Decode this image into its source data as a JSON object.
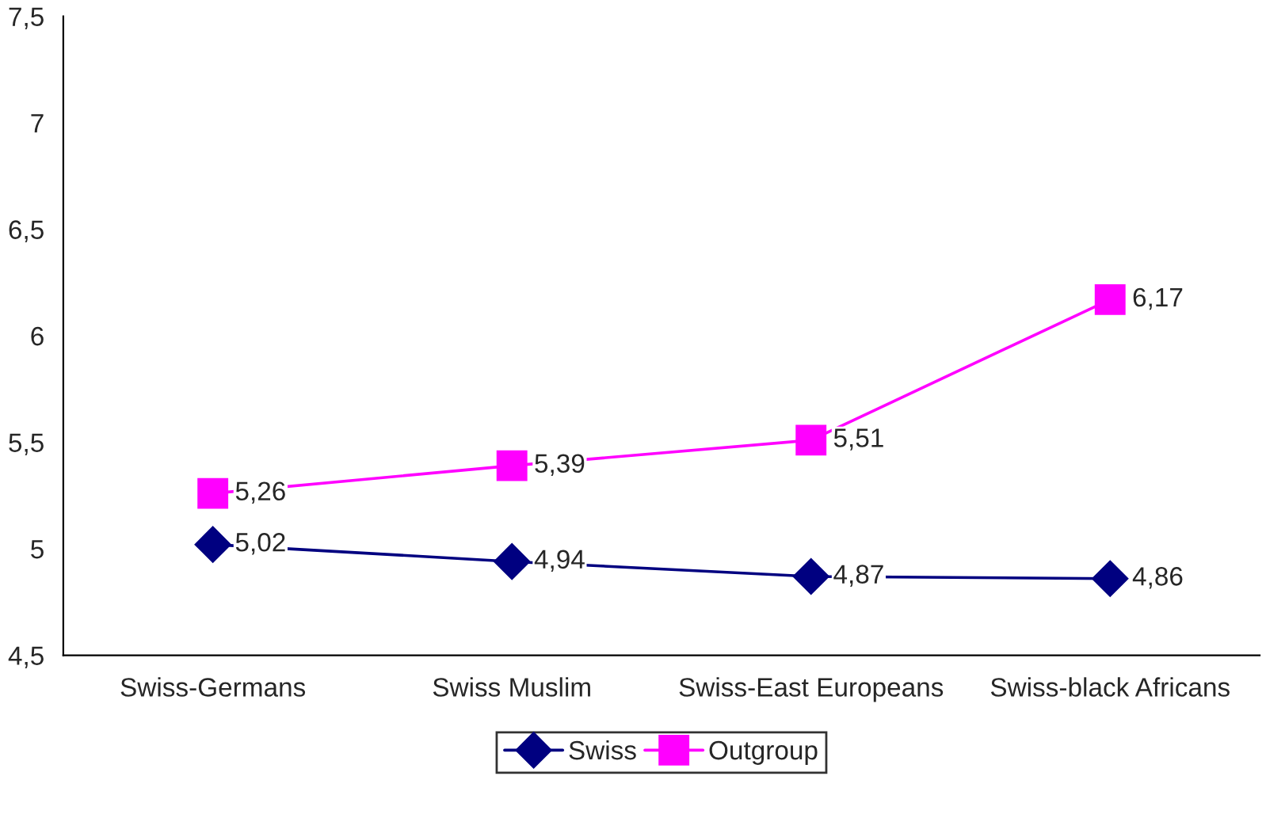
{
  "chart_data": {
    "type": "line",
    "categories": [
      "Swiss-Germans",
      "Swiss Muslim",
      "Swiss-East Europeans",
      "Swiss-black Africans"
    ],
    "series": [
      {
        "name": "Swiss",
        "color": "#000080",
        "marker": "diamond",
        "values": [
          5.02,
          4.94,
          4.87,
          4.86
        ],
        "value_labels": [
          "5,02",
          "4,94",
          "4,87",
          "4,86"
        ]
      },
      {
        "name": "Outgroup",
        "color": "#ff00ff",
        "marker": "square",
        "values": [
          5.26,
          5.39,
          5.51,
          6.17
        ],
        "value_labels": [
          "5,26",
          "5,39",
          "5,51",
          "6,17"
        ]
      }
    ],
    "ylim": [
      4.5,
      7.5
    ],
    "yticks": [
      {
        "value": 4.5,
        "label": "4,5"
      },
      {
        "value": 5,
        "label": "5"
      },
      {
        "value": 5.5,
        "label": "5,5"
      },
      {
        "value": 6,
        "label": "6"
      },
      {
        "value": 6.5,
        "label": "6,5"
      },
      {
        "value": 7,
        "label": "7"
      },
      {
        "value": 7.5,
        "label": "7,5"
      }
    ],
    "grid": false,
    "legend": "bottom",
    "line_style": "solid"
  }
}
